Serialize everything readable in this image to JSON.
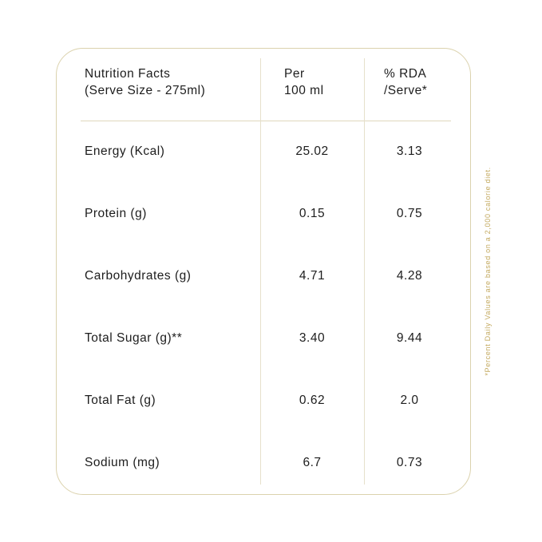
{
  "card": {
    "header": {
      "col1_line1": "Nutrition Facts",
      "col1_line2": "(Serve Size - 275ml)",
      "col2_line1": "Per",
      "col2_line2": "100 ml",
      "col3_line1": "% RDA",
      "col3_line2": "/Serve*"
    },
    "rows": [
      {
        "label": "Energy (Kcal)",
        "per100": "25.02",
        "rda": "3.13"
      },
      {
        "label": "Protein (g)",
        "per100": "0.15",
        "rda": "0.75"
      },
      {
        "label": "Carbohydrates (g)",
        "per100": "4.71",
        "rda": "4.28"
      },
      {
        "label": "Total Sugar (g)**",
        "per100": "3.40",
        "rda": "9.44"
      },
      {
        "label": "Total Fat (g)",
        "per100": "0.62",
        "rda": "2.0"
      },
      {
        "label": "Sodium (mg)",
        "per100": "6.7",
        "rda": "0.73"
      }
    ],
    "footnote": "*Percent Daily Values are based on a 2,000 calorie diet.",
    "colors": {
      "card_border": "#dbd2ad",
      "column_divider": "#e6e0cb",
      "header_divider": "#e0d8bd",
      "text": "#1d1d1d",
      "footnote_text": "#c3a95f"
    }
  },
  "table_data": {
    "type": "table",
    "columns": [
      "Nutrition Facts (Serve Size - 275ml)",
      "Per 100 ml",
      "% RDA /Serve*"
    ],
    "rows": [
      [
        "Energy (Kcal)",
        "25.02",
        "3.13"
      ],
      [
        "Protein (g)",
        "0.15",
        "0.75"
      ],
      [
        "Carbohydrates (g)",
        "4.71",
        "4.28"
      ],
      [
        "Total Sugar (g)**",
        "3.40",
        "9.44"
      ],
      [
        "Total Fat (g)",
        "0.62",
        "2.0"
      ],
      [
        "Sodium (mg)",
        "6.7",
        "0.73"
      ]
    ]
  }
}
